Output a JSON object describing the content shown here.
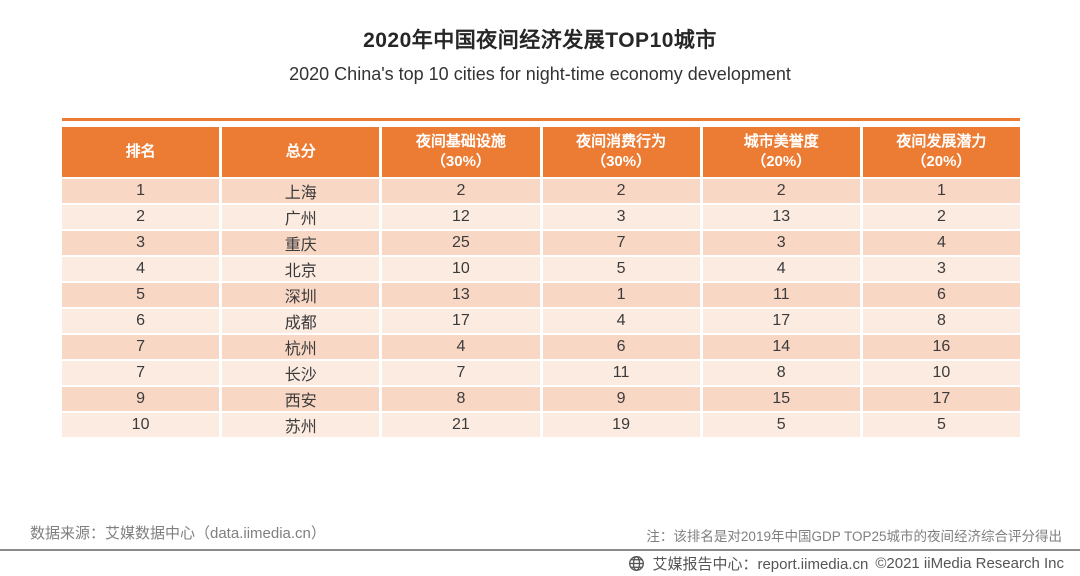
{
  "title": "2020年中国夜间经济发展TOP10城市",
  "subtitle": "2020 China's top 10 cities for night-time economy development",
  "chart_data": {
    "type": "table",
    "title": "2020年中国夜间经济发展TOP10城市",
    "subtitle": "2020 China's top 10 cities for night-time economy development",
    "columns": [
      {
        "label": "排名",
        "weight": ""
      },
      {
        "label": "总分",
        "weight": ""
      },
      {
        "label": "夜间基础设施",
        "weight": "（30%）"
      },
      {
        "label": "夜间消费行为",
        "weight": "（30%）"
      },
      {
        "label": "城市美誉度",
        "weight": "（20%）"
      },
      {
        "label": "夜间发展潜力",
        "weight": "（20%）"
      }
    ],
    "rows": [
      [
        "1",
        "上海",
        "2",
        "2",
        "2",
        "1"
      ],
      [
        "2",
        "广州",
        "12",
        "3",
        "13",
        "2"
      ],
      [
        "3",
        "重庆",
        "25",
        "7",
        "3",
        "4"
      ],
      [
        "4",
        "北京",
        "10",
        "5",
        "4",
        "3"
      ],
      [
        "5",
        "深圳",
        "13",
        "1",
        "11",
        "6"
      ],
      [
        "6",
        "成都",
        "17",
        "4",
        "17",
        "8"
      ],
      [
        "7",
        "杭州",
        "4",
        "6",
        "14",
        "16"
      ],
      [
        "7",
        "长沙",
        "7",
        "11",
        "8",
        "10"
      ],
      [
        "9",
        "西安",
        "8",
        "9",
        "15",
        "17"
      ],
      [
        "10",
        "苏州",
        "21",
        "19",
        "5",
        "5"
      ]
    ],
    "banding": "alternating rows, odd rows darker peach, even rows lighter peach",
    "legend_position": "none",
    "grid": false
  },
  "footer": {
    "source": "数据来源：艾媒数据中心（data.iimedia.cn）",
    "note": "注：该排名是对2019年中国GDP TOP25城市的夜间经济综合评分得出"
  },
  "bottom_bar": {
    "icon": "globe-icon",
    "brand": "艾媒报告中心：report.iimedia.cn",
    "copyright": "©2021  iiMedia Research Inc"
  },
  "colors": {
    "header_bg": "#EC7C33",
    "row_dark": "#F8D7C5",
    "row_light": "#FCEBE1",
    "header_text": "#FFFFFF",
    "body_text": "#3B3B3B",
    "muted_text": "#7F7F7F",
    "separator_line": "#8A8A8A"
  }
}
